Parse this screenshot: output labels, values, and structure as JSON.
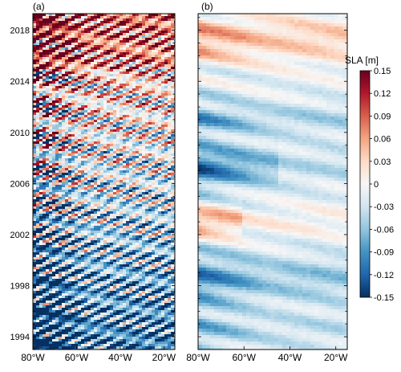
{
  "figure": {
    "panels": [
      {
        "label": "(a)"
      },
      {
        "label": "(b)"
      }
    ]
  },
  "chart_data": [
    {
      "type": "heatmap",
      "panel": "(a)",
      "x_ticks": [
        "80°W",
        "60°W",
        "40°W",
        "20°W"
      ],
      "x_tick_values": [
        -80,
        -60,
        -40,
        -20
      ],
      "xlim": [
        -80,
        -15
      ],
      "y_ticks": [
        "1994",
        "1998",
        "2002",
        "2006",
        "2010",
        "2014",
        "2018"
      ],
      "y_tick_values": [
        1994,
        1998,
        2002,
        2006,
        2010,
        2014,
        2018
      ],
      "ylim": [
        1993,
        2019.3
      ],
      "field": "SLA",
      "pattern": "westward-propagating diagonal bands; strong positive SLA near 80°W after 2015"
    },
    {
      "type": "heatmap",
      "panel": "(b)",
      "x_ticks": [
        "80°W",
        "60°W",
        "40°W",
        "20°W"
      ],
      "x_tick_values": [
        -80,
        -60,
        -40,
        -20
      ],
      "xlim": [
        -80,
        -15
      ],
      "ylim": [
        1993,
        2019.3
      ],
      "field": "SLA",
      "pattern": "smoothed; positive SLA after 2015 and near 2003, negative 1994–2012"
    }
  ],
  "colorbar": {
    "title": "SLA [m]",
    "min": -0.15,
    "max": 0.15,
    "tick_labels": [
      "0.15",
      "0.12",
      "0.09",
      "0.06",
      "0.03",
      "0",
      "-0.03",
      "-0.06",
      "-0.09",
      "-0.12",
      "-0.15"
    ],
    "tick_values": [
      0.15,
      0.12,
      0.09,
      0.06,
      0.03,
      0,
      -0.03,
      -0.06,
      -0.09,
      -0.12,
      -0.15
    ],
    "colors": [
      "#053061",
      "#2166ac",
      "#4393c3",
      "#92c5de",
      "#d1e5f0",
      "#f7f7f7",
      "#fddbc7",
      "#f4a582",
      "#d6604d",
      "#b2182b",
      "#67001f"
    ]
  }
}
